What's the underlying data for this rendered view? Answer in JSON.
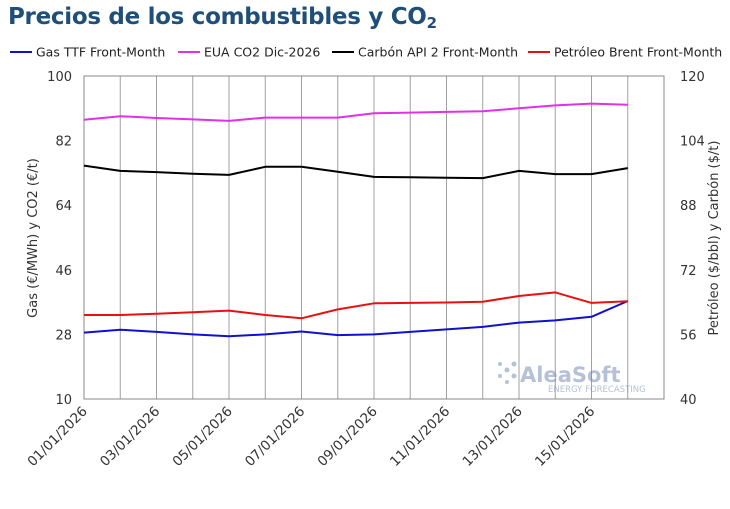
{
  "title_main": "Precios de los combustibles y CO",
  "title_sub": "2",
  "watermark": {
    "brand": "AleaSoft",
    "tagline": "ENERGY FORECASTING"
  },
  "chart_data": {
    "type": "line",
    "x": [
      "01/01/2026",
      "02/01/2026",
      "03/01/2026",
      "04/01/2026",
      "05/01/2026",
      "06/01/2026",
      "07/01/2026",
      "08/01/2026",
      "09/01/2026",
      "10/01/2026",
      "11/01/2026",
      "12/01/2026",
      "13/01/2026",
      "14/01/2026",
      "15/01/2026",
      "16/01/2026"
    ],
    "x_tick_labels": [
      "01/01/2026",
      "03/01/2026",
      "05/01/2026",
      "07/01/2026",
      "09/01/2026",
      "11/01/2026",
      "13/01/2026",
      "15/01/2026"
    ],
    "y_left": {
      "label": "Gas (€/MWh) y CO2 (€/t)",
      "lim": [
        10,
        100
      ],
      "ticks": [
        10,
        28,
        46,
        64,
        82,
        100
      ]
    },
    "y_right": {
      "label": "Petróleo ($/bbl) y Carbón ($/t)",
      "lim": [
        40,
        120
      ],
      "ticks": [
        40,
        56,
        72,
        88,
        104,
        120
      ]
    },
    "grid": "vertical",
    "legend_position": "top",
    "series": [
      {
        "name": "Gas TTF Front-Month",
        "axis": "left",
        "color": "#1010d0",
        "values": [
          28.5,
          29.3,
          28.7,
          28.0,
          27.5,
          28.0,
          28.8,
          27.8,
          28.0,
          28.7,
          29.4,
          30.1,
          31.3,
          31.9,
          32.9,
          37.3
        ]
      },
      {
        "name": "EUA CO2 Dic-2026",
        "axis": "left",
        "color": "#e030e8",
        "values": [
          87.8,
          88.8,
          88.3,
          87.9,
          87.5,
          88.4,
          88.4,
          88.4,
          89.6,
          89.8,
          90.0,
          90.2,
          91.0,
          91.8,
          92.3,
          92.0
        ]
      },
      {
        "name": "Carbón API 2 Front-Month",
        "axis": "right",
        "color": "#000000",
        "values": [
          97.8,
          96.5,
          96.2,
          95.8,
          95.5,
          97.5,
          97.5,
          96.3,
          95.0,
          94.9,
          94.8,
          94.7,
          96.5,
          95.7,
          95.7,
          97.2
        ]
      },
      {
        "name": "Petróleo Brent Front-Month",
        "axis": "right",
        "color": "#e81010",
        "values": [
          60.8,
          60.8,
          61.1,
          61.5,
          61.9,
          60.8,
          60.0,
          62.2,
          63.7,
          63.8,
          63.9,
          64.1,
          65.5,
          66.4,
          63.8,
          64.2
        ]
      }
    ]
  }
}
